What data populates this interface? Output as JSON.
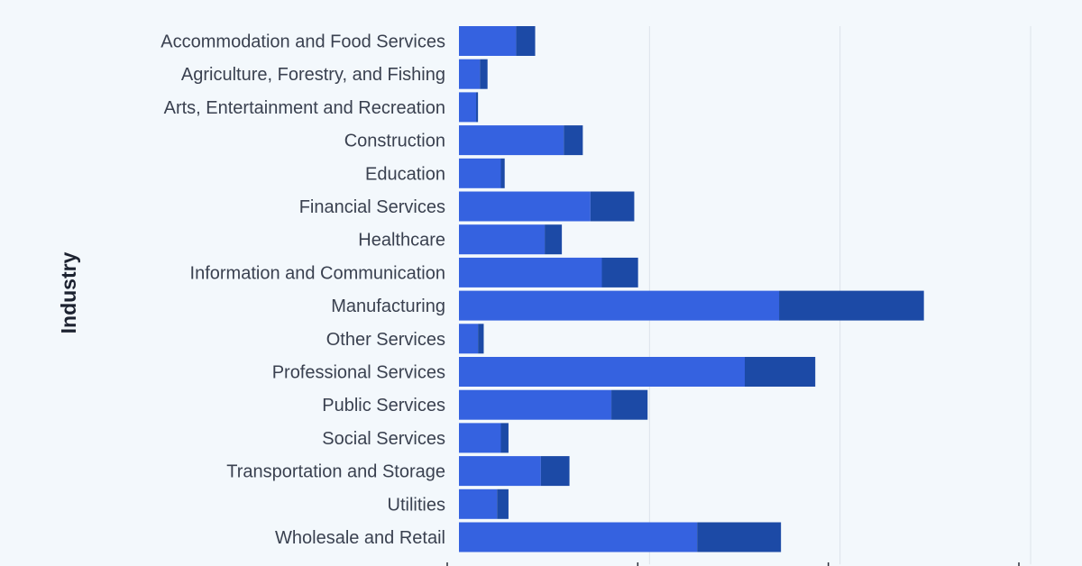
{
  "chart_data": {
    "type": "bar",
    "orientation": "horizontal",
    "stacked": true,
    "ylabel": "Industry",
    "xlabel": "",
    "xlim": [
      0,
      30
    ],
    "grid": true,
    "categories": [
      "Accommodation and Food Services",
      "Agriculture, Forestry, and Fishing",
      "Arts, Entertainment and Recreation",
      "Construction",
      "Education",
      "Financial Services",
      "Healthcare",
      "Information and Communication",
      "Manufacturing",
      "Other Services",
      "Professional Services",
      "Public Services",
      "Social Services",
      "Transportation and Storage",
      "Utilities",
      "Wholesale and Retail"
    ],
    "series": [
      {
        "values": [
          3.0,
          1.1,
          0.9,
          5.5,
          2.2,
          6.9,
          4.5,
          7.5,
          16.8,
          1.0,
          15.0,
          8.0,
          2.2,
          4.3,
          2.0,
          12.5
        ],
        "color": "#3562e0"
      },
      {
        "values": [
          1.0,
          0.4,
          0.1,
          1.0,
          0.2,
          2.3,
          0.9,
          1.9,
          7.6,
          0.3,
          3.7,
          1.9,
          0.4,
          1.5,
          0.6,
          4.4
        ],
        "color": "#1c4aa6"
      }
    ]
  }
}
